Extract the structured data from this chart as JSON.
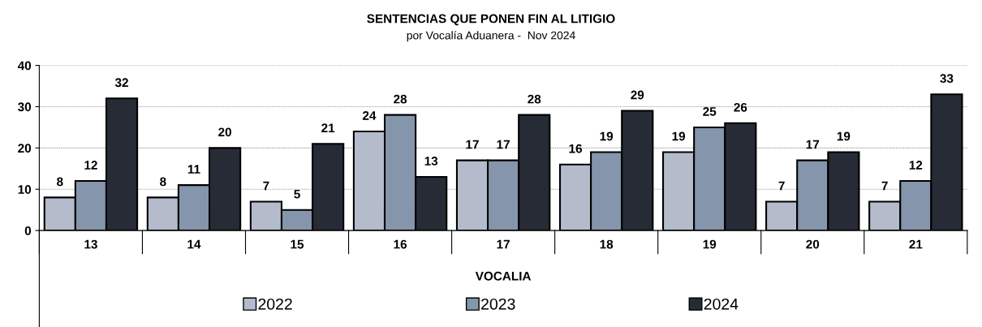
{
  "chart_data": {
    "type": "bar",
    "title": "SENTENCIAS QUE PONEN FIN AL LITIGIO",
    "subtitle": "por Vocalía Aduanera -  Nov 2024",
    "xlabel": "VOCALIA",
    "categories": [
      "13",
      "14",
      "15",
      "16",
      "17",
      "18",
      "19",
      "20",
      "21"
    ],
    "series": [
      {
        "name": "2022",
        "color": "#b4bccb",
        "values": [
          8,
          8,
          7,
          24,
          17,
          16,
          19,
          7,
          7
        ]
      },
      {
        "name": "2023",
        "color": "#8595ab",
        "values": [
          12,
          11,
          5,
          28,
          17,
          19,
          25,
          17,
          12
        ]
      },
      {
        "name": "2024",
        "color": "#262b36",
        "values": [
          32,
          20,
          21,
          13,
          28,
          29,
          26,
          19,
          33
        ]
      }
    ],
    "ylim": [
      0,
      40
    ],
    "yticks": [
      0,
      10,
      20,
      30,
      40
    ],
    "grid": "y",
    "legend": "bottom",
    "data_labels": true
  }
}
